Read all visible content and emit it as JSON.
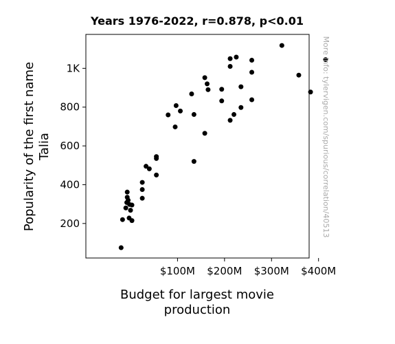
{
  "chart_data": {
    "type": "scatter",
    "title": "Years 1976-2022, r=0.878, p<0.01",
    "xlabel_lines": [
      "Budget for largest movie",
      "production"
    ],
    "ylabel_lines": [
      "Popularity of the first name",
      "Talia"
    ],
    "side_note": "More info: tylervigen.com/spurious/correlation/40513",
    "xlim": [
      -95,
      380
    ],
    "ylim": [
      22,
      1175
    ],
    "x_ticks": [
      {
        "value": 100,
        "label": "$100M"
      },
      {
        "value": 200,
        "label": "$200M"
      },
      {
        "value": 300,
        "label": "$300M"
      },
      {
        "value": 400,
        "label": "$400M"
      }
    ],
    "y_ticks": [
      {
        "value": 200,
        "label": "200"
      },
      {
        "value": 400,
        "label": "400"
      },
      {
        "value": 600,
        "label": "600"
      },
      {
        "value": 800,
        "label": "800"
      },
      {
        "value": 1000,
        "label": "1K"
      }
    ],
    "marker_color": "#000000",
    "points": [
      {
        "x": -20,
        "y": 75
      },
      {
        "x": -17,
        "y": 220
      },
      {
        "x": -10,
        "y": 280
      },
      {
        "x": -8,
        "y": 308
      },
      {
        "x": -7,
        "y": 335
      },
      {
        "x": -7,
        "y": 362
      },
      {
        "x": -5,
        "y": 320
      },
      {
        "x": -3,
        "y": 228
      },
      {
        "x": -2,
        "y": 298
      },
      {
        "x": 0,
        "y": 268
      },
      {
        "x": 3,
        "y": 215
      },
      {
        "x": 3,
        "y": 295
      },
      {
        "x": 25,
        "y": 330
      },
      {
        "x": 25,
        "y": 375
      },
      {
        "x": 25,
        "y": 412
      },
      {
        "x": 33,
        "y": 495
      },
      {
        "x": 40,
        "y": 482
      },
      {
        "x": 55,
        "y": 450
      },
      {
        "x": 55,
        "y": 535
      },
      {
        "x": 55,
        "y": 545
      },
      {
        "x": 80,
        "y": 760
      },
      {
        "x": 95,
        "y": 698
      },
      {
        "x": 97,
        "y": 808
      },
      {
        "x": 106,
        "y": 780
      },
      {
        "x": 130,
        "y": 868
      },
      {
        "x": 135,
        "y": 520
      },
      {
        "x": 135,
        "y": 762
      },
      {
        "x": 158,
        "y": 665
      },
      {
        "x": 158,
        "y": 952
      },
      {
        "x": 163,
        "y": 920
      },
      {
        "x": 165,
        "y": 890
      },
      {
        "x": 194,
        "y": 832
      },
      {
        "x": 194,
        "y": 892
      },
      {
        "x": 212,
        "y": 732
      },
      {
        "x": 212,
        "y": 1010
      },
      {
        "x": 212,
        "y": 1050
      },
      {
        "x": 220,
        "y": 762
      },
      {
        "x": 225,
        "y": 1058
      },
      {
        "x": 235,
        "y": 798
      },
      {
        "x": 235,
        "y": 905
      },
      {
        "x": 258,
        "y": 838
      },
      {
        "x": 258,
        "y": 980
      },
      {
        "x": 258,
        "y": 1042
      },
      {
        "x": 322,
        "y": 1118
      },
      {
        "x": 358,
        "y": 965
      },
      {
        "x": 383,
        "y": 878
      },
      {
        "x": 415,
        "y": 1045
      }
    ]
  }
}
